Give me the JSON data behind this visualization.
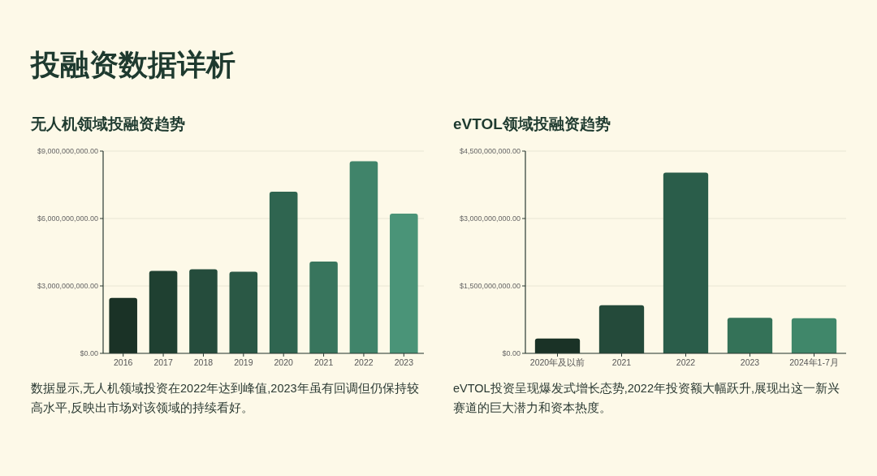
{
  "chart_data": [
    {
      "type": "bar",
      "title": "投融资数据详析",
      "subtitle": "无人机领域投融资趋势",
      "categories": [
        "2016",
        "2017",
        "2018",
        "2019",
        "2020",
        "2021",
        "2022",
        "2023"
      ],
      "values": [
        2470000000,
        3670000000,
        3740000000,
        3630000000,
        7190000000,
        4080000000,
        8550000000,
        6220000000
      ],
      "colors": [
        "#1a3226",
        "#1f4031",
        "#254c3c",
        "#2a5845",
        "#2f6550",
        "#38755d",
        "#40846a",
        "#4a9478"
      ],
      "ylim": [
        0,
        9000000000
      ],
      "yticks": [
        {
          "value": 0,
          "label": "$0.00"
        },
        {
          "value": 3000000000,
          "label": "$3,000,000,000.00"
        },
        {
          "value": 6000000000,
          "label": "$6,000,000,000.00"
        },
        {
          "value": 9000000000,
          "label": "$9,000,000,000.00"
        }
      ],
      "grid": "y",
      "annotations": [
        "数据显示,无人机领域投资在2022年达到峰值,2023年虽有回调但仍保持较高水平,反映出市场对该领域的持续看好。"
      ]
    },
    {
      "type": "bar",
      "title": "eVTOL领域投融资趋势",
      "categories": [
        "2020年及以前",
        "2021",
        "2022",
        "2023",
        "2024年1-7月"
      ],
      "values": [
        330000000,
        1070000000,
        4020000000,
        790000000,
        780000000
      ],
      "colors": [
        "#1a3226",
        "#244a3a",
        "#2a5d4a",
        "#347258",
        "#40876a"
      ],
      "ylim": [
        0,
        4500000000
      ],
      "yticks": [
        {
          "value": 0,
          "label": "$0.00"
        },
        {
          "value": 1500000000,
          "label": "$1,500,000,000.00"
        },
        {
          "value": 3000000000,
          "label": "$3,000,000,000.00"
        },
        {
          "value": 4500000000,
          "label": "$4,500,000,000.00"
        }
      ],
      "grid": "y",
      "annotations": [
        "eVTOL投资呈现爆发式增长态势,2022年投资额大幅跃升,展现出这一新兴赛道的巨大潜力和资本热度。"
      ]
    }
  ]
}
